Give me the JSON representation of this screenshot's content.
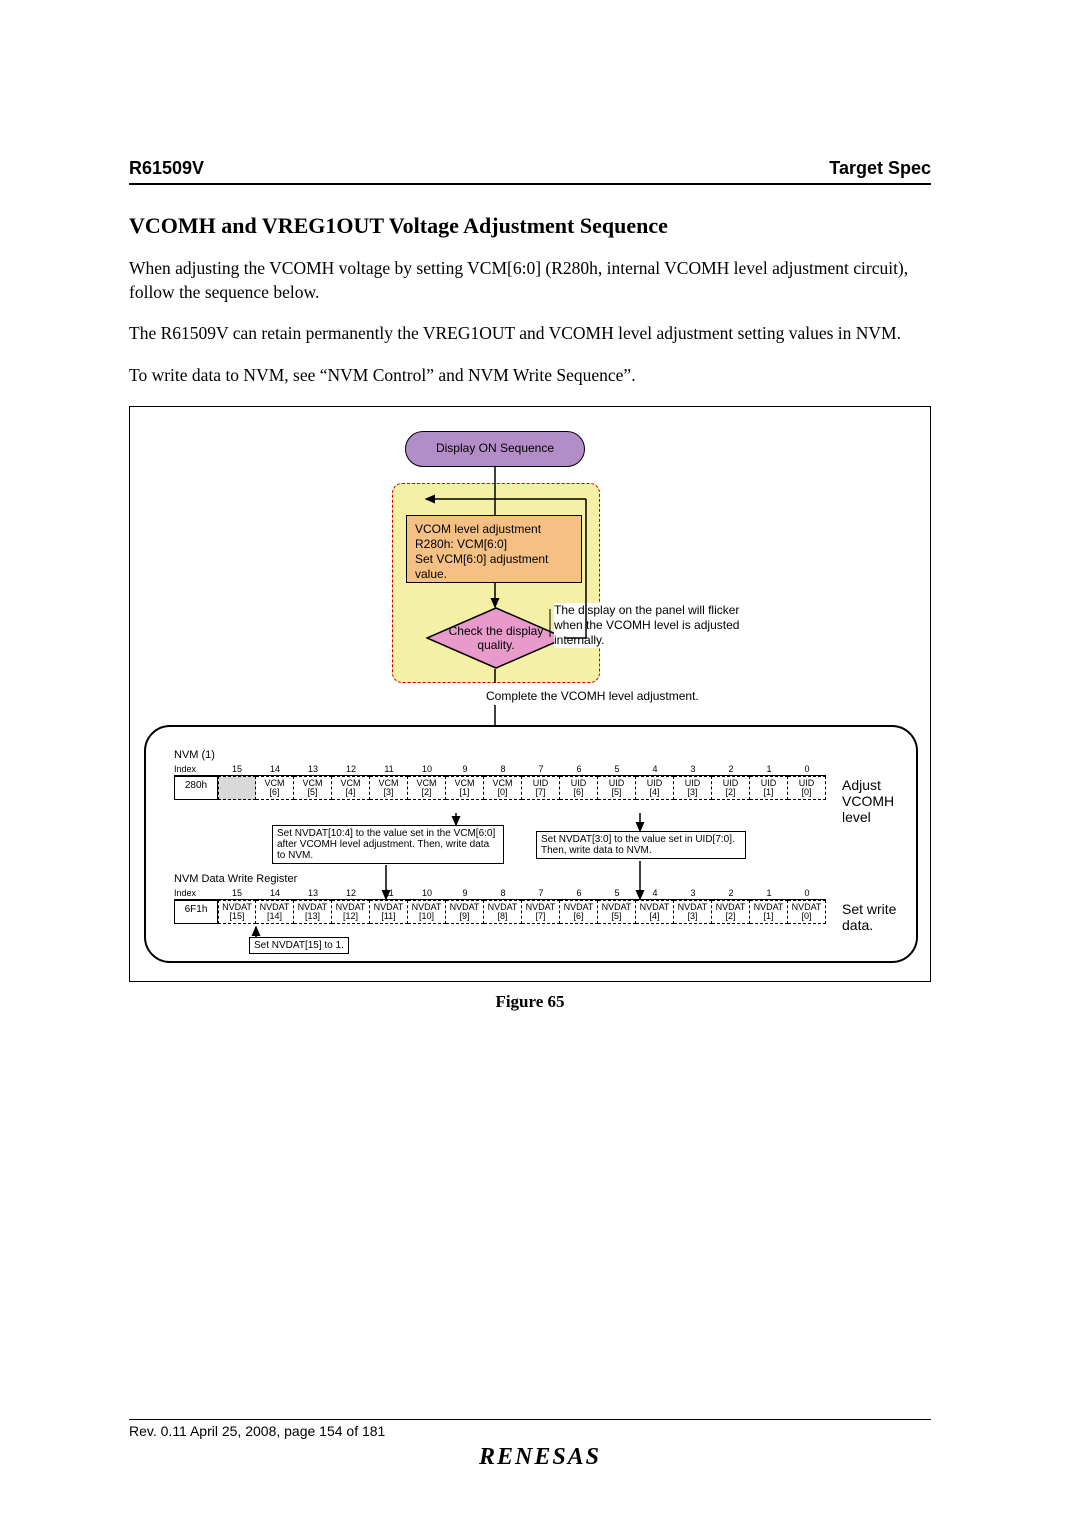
{
  "header": {
    "left": "R61509V",
    "right": "Target Spec"
  },
  "section_title": "VCOMH and VREG1OUT Voltage Adjustment Sequence",
  "para1": "When adjusting the VCOMH voltage by setting VCM[6:0]  (R280h, internal VCOMH level adjustment circuit), follow the sequence below.",
  "para2": "The R61509V can retain permanently the VREG1OUT and VCOMH level adjustment setting values in NVM.",
  "para3": "To write data to NVM, see “NVM Control” and NVM Write Sequence”.",
  "figure_caption": "Figure 65",
  "flow": {
    "start": {
      "label": "Display ON Sequence",
      "bg": "#b38dc8"
    },
    "loop_bg": "#f4f0a6",
    "adjust_box": {
      "line1": "VCOM level adjustment",
      "line2": "R280h: VCM[6:0]",
      "line3": "Set VCM[6:0] adjustment value.",
      "bg": "#f4c083"
    },
    "diamond": {
      "label": "Check the display quality.",
      "bg": "#e89acb"
    },
    "callout": "The display on the panel will flicker when the VCOMH level is adjusted internally.",
    "complete": "Complete the VCOMH level adjustment."
  },
  "reg": {
    "title1": "NVM (1)",
    "title2": "NVM Data Write Register",
    "index_label": "Index",
    "bit_nums": [
      "15",
      "14",
      "13",
      "12",
      "11",
      "10",
      "9",
      "8",
      "7",
      "6",
      "5",
      "4",
      "3",
      "2",
      "1",
      "0"
    ],
    "row1": {
      "index": "280h",
      "cells": [
        {
          "t": "",
          "s": ""
        },
        {
          "t": "",
          "s": ""
        },
        {
          "t": "",
          "s": ""
        },
        {
          "t": "",
          "s": ""
        },
        {
          "t": "",
          "s": ""
        },
        {
          "t": "",
          "s": ""
        },
        {
          "t": "",
          "s": ""
        },
        {
          "t": "",
          "s": ""
        },
        {
          "t": "",
          "s": ""
        },
        {
          "t": "VCM",
          "s": "[6]"
        },
        {
          "t": "VCM",
          "s": "[5]"
        },
        {
          "t": "VCM",
          "s": "[4]"
        },
        {
          "t": "VCM",
          "s": "[3]"
        },
        {
          "t": "VCM",
          "s": "[2]"
        },
        {
          "t": "VCM",
          "s": "[1]"
        },
        {
          "t": "VCM",
          "s": "[0]"
        }
      ],
      "note": "Adjust VCOMH level",
      "shade_cols": [
        0,
        1,
        2,
        3,
        4,
        5,
        6,
        7,
        8
      ]
    },
    "note_a": "Set NVDAT[10:4] to the value set in the VCM[6:0] after VCOMH level adjustment. Then, write data to NVM.",
    "note_b": "Set NVDAT[3:0] to the value set in UID[7:0]. Then, write data to NVM.",
    "row2": {
      "index": "6F1h",
      "cells": [
        {
          "t": "NVDAT",
          "s": "[15]"
        },
        {
          "t": "NVDAT",
          "s": "[14]"
        },
        {
          "t": "NVDAT",
          "s": "[13]"
        },
        {
          "t": "NVDAT",
          "s": "[12]"
        },
        {
          "t": "NVDAT",
          "s": "[11]"
        },
        {
          "t": "NVDAT",
          "s": "[10]"
        },
        {
          "t": "NVDAT",
          "s": "[9]"
        },
        {
          "t": "NVDAT",
          "s": "[8]"
        },
        {
          "t": "NVDAT",
          "s": "[7]"
        },
        {
          "t": "NVDAT",
          "s": "[6]"
        },
        {
          "t": "NVDAT",
          "s": "[5]"
        },
        {
          "t": "NVDAT",
          "s": "[4]"
        },
        {
          "t": "NVDAT",
          "s": "[3]"
        },
        {
          "t": "NVDAT",
          "s": "[2]"
        },
        {
          "t": "NVDAT",
          "s": "[1]"
        },
        {
          "t": "NVDAT",
          "s": "[0]"
        }
      ],
      "note": "Set write data.",
      "shade_cols": []
    },
    "note_c": "Set NVDAT[15] to 1.",
    "shade_color": "#d9d9d9",
    "overlap_color": "#fff6c4"
  },
  "footer": "Rev. 0.11 April 25, 2008, page 154 of 181",
  "brand": "RENESAS"
}
